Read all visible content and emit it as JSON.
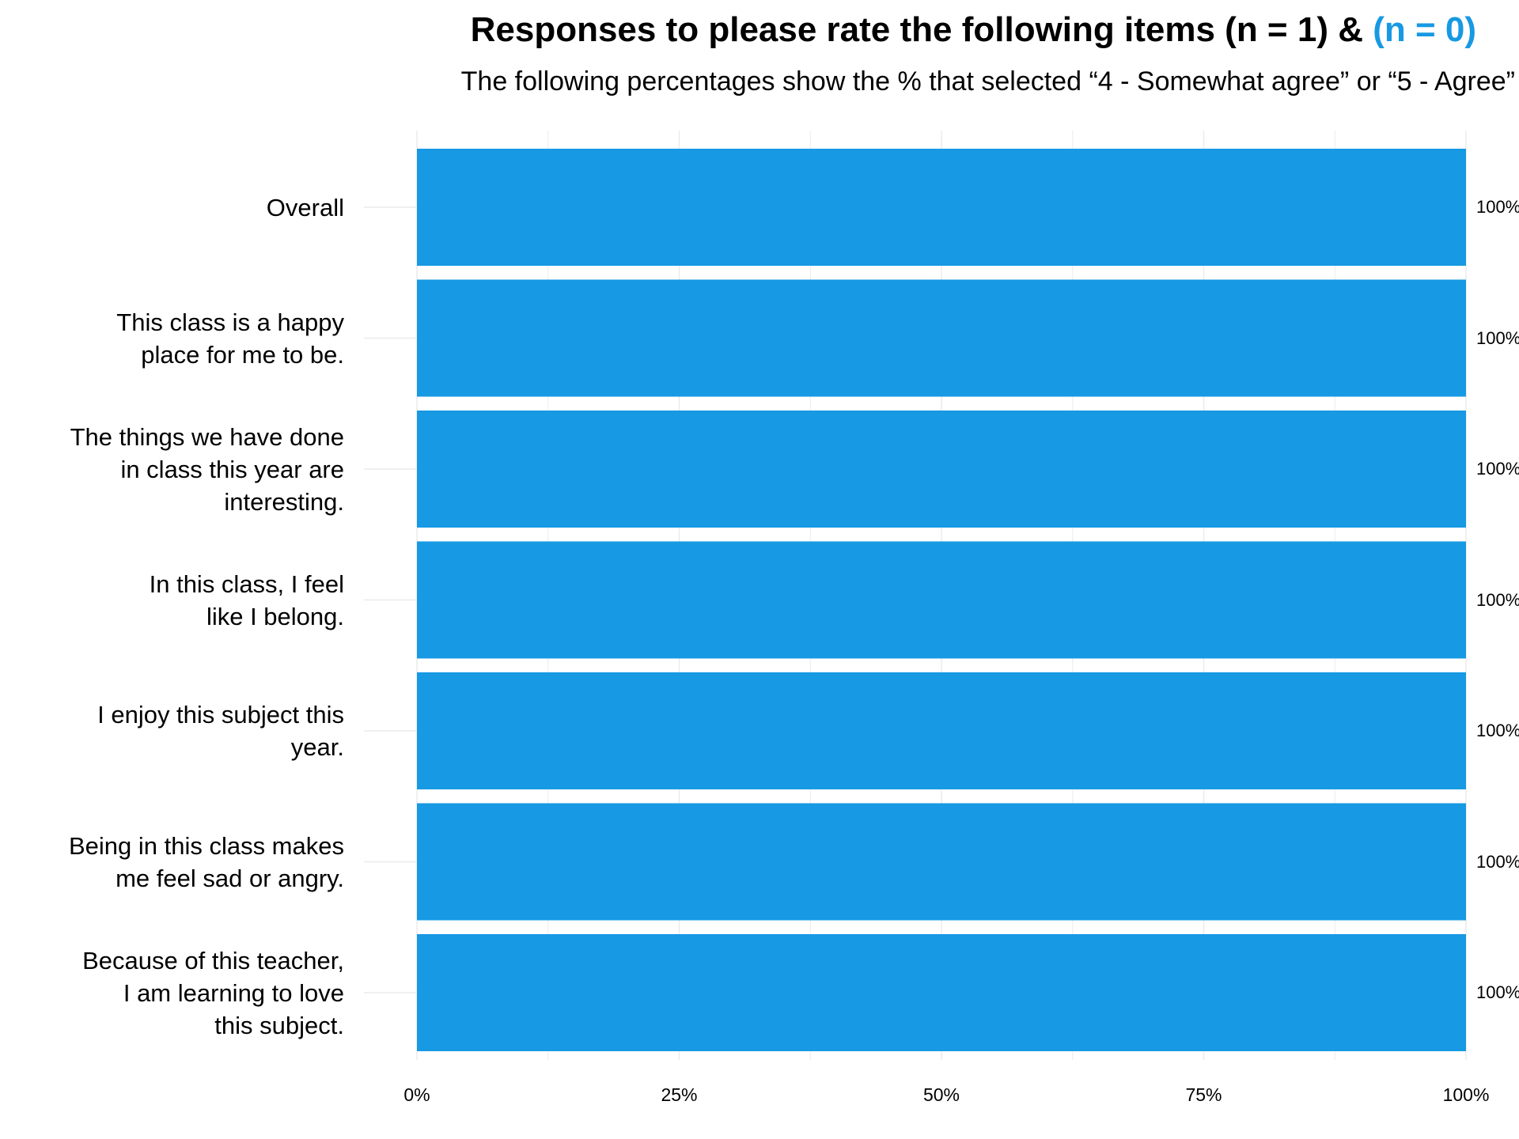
{
  "chart_data": {
    "type": "bar",
    "orientation": "horizontal",
    "title": "Responses to please rate the following items (n = 1) & ",
    "title_accent": "(n = 0)",
    "subtitle": "The following percentages show the % that selected “4 - Somewhat agree” or “5 - Agree”",
    "categories": [
      "Overall",
      "This class is a happy\nplace for me to be.",
      "The things we have done\nin class this year are\ninteresting.",
      "In this class, I feel\nlike I belong.",
      "I enjoy this subject this\nyear.",
      "Being in this class makes\nme feel sad or angry.",
      "Because of this teacher,\nI am learning to love\nthis subject."
    ],
    "values": [
      100,
      100,
      100,
      100,
      100,
      100,
      100
    ],
    "value_labels": [
      "100%",
      "100%",
      "100%",
      "100%",
      "100%",
      "100%",
      "100%"
    ],
    "xlim": [
      0,
      100
    ],
    "xticks": [
      0,
      25,
      50,
      75,
      100
    ],
    "xtick_labels": [
      "0%",
      "25%",
      "50%",
      "75%",
      "100%"
    ],
    "xlabel": "",
    "ylabel": "",
    "grid": true,
    "legend": "none",
    "colors": {
      "bar": "#1799e3",
      "accent": "#1799e3",
      "grid": "#ebebeb"
    }
  }
}
